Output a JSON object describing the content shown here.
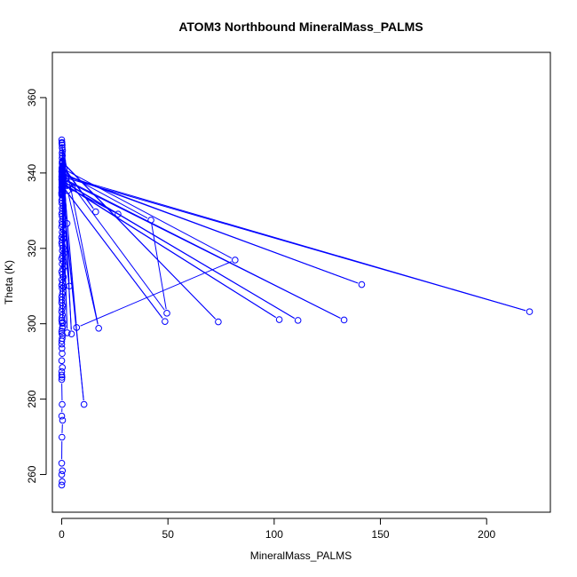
{
  "chart_data": {
    "type": "line",
    "title": "ATOM3 Northbound MineralMass_PALMS",
    "xlabel": "MineralMass_PALMS",
    "ylabel": "Theta (K)",
    "xlim": [
      -4.4,
      230
    ],
    "ylim": [
      250,
      372
    ],
    "xticks": [
      0,
      50,
      100,
      150,
      200
    ],
    "yticks": [
      260,
      280,
      300,
      320,
      340,
      360
    ],
    "grid": false,
    "legend": "none",
    "colors": {
      "series": "#0000ff",
      "axes": "#000000"
    },
    "series": [
      {
        "style": "points-and-lines",
        "x": [
          0,
          0.2,
          0,
          0.3,
          0,
          0.1,
          0.4,
          0,
          0.2,
          0,
          0.1,
          0,
          0,
          0.3,
          0,
          0.2,
          0.1,
          0,
          0,
          0.2,
          0.4,
          0.1,
          0,
          0.3,
          0.5,
          0.2,
          0,
          0.1,
          0.3,
          0,
          0.2,
          0.4,
          0,
          0.1,
          0,
          0.3,
          0.6,
          0.2,
          0,
          0.4,
          0.1,
          0.8,
          0.3,
          0,
          0.5,
          1.2,
          0.2,
          0.7,
          0,
          0.4,
          1.0,
          0.3,
          0.6,
          0.2,
          0,
          0.3,
          0,
          0.5,
          0.2,
          0.8,
          0,
          0.3,
          0.1,
          0.5,
          0.2,
          0,
          0.4,
          0.2,
          0.6,
          0.1,
          0,
          0.3,
          0.2,
          0.5,
          0.1,
          0,
          10.5,
          0.2,
          0.1,
          0,
          0,
          0.1,
          0,
          2.6,
          0.1,
          0.3,
          0.2,
          4.6,
          0.4,
          0.2,
          3.6,
          0.8,
          0.3,
          0.5,
          0.2,
          1.0,
          0.4,
          0.2,
          2.8,
          17.4,
          0.2,
          0.1,
          0,
          2.5,
          0.1,
          0.3,
          73.7,
          0.2,
          0.3,
          0.5,
          16.0,
          0.3,
          0.2,
          0.1,
          81.6,
          7.0,
          0.5,
          0.2,
          0.4,
          0.1,
          0.2,
          1.2,
          42.0,
          49.5,
          0.6,
          0.2,
          141.2,
          0.4,
          0.1,
          1.0,
          220.2,
          0.1,
          0.3,
          0.5,
          132.9,
          0.2,
          0.4,
          0.1,
          111.2,
          0.3,
          0.5,
          0.2,
          102.4,
          0.4,
          0.1,
          26.5,
          0.6,
          0.3,
          48.6,
          0.5,
          0.2,
          5.0,
          0.3,
          0.1,
          0.5,
          0.2,
          0.1,
          0,
          0,
          0.1,
          0
        ],
        "y": [
          257.2,
          258.1,
          260.0,
          261.0,
          263.0,
          269.9,
          274.4,
          275.5,
          278.6,
          285.2,
          285.8,
          286.4,
          287.3,
          288.4,
          290.2,
          292.1,
          293.5,
          294.6,
          295.4,
          296.1,
          296.9,
          297.4,
          298.0,
          298.8,
          299.3,
          300.1,
          300.9,
          301.6,
          302.3,
          303.2,
          304.0,
          304.8,
          305.6,
          306.3,
          307.1,
          307.9,
          308.6,
          309.4,
          310.2,
          310.9,
          311.7,
          312.4,
          313.1,
          313.8,
          314.5,
          315.2,
          315.9,
          316.6,
          317.3,
          318.0,
          318.7,
          319.4,
          320.1,
          320.8,
          321.5,
          322.2,
          322.9,
          323.6,
          324.3,
          325.0,
          325.7,
          326.4,
          327.1,
          327.8,
          328.5,
          329.2,
          329.9,
          330.6,
          331.3,
          332.0,
          332.7,
          333.4,
          334.1,
          334.8,
          335.5,
          336.2,
          278.6,
          336.9,
          337.6,
          338.3,
          339.0,
          339.7,
          340.4,
          297.6,
          341.1,
          341.8,
          342.5,
          297.3,
          343.2,
          343.9,
          310.0,
          322.6,
          344.6,
          300.4,
          345.3,
          309.8,
          346.0,
          346.7,
          335.3,
          298.8,
          347.4,
          348.1,
          348.8,
          326.6,
          347.9,
          342.8,
          300.5,
          343.0,
          342.6,
          342.0,
          329.7,
          341.8,
          341.5,
          341.3,
          316.9,
          299.0,
          341.0,
          340.8,
          340.6,
          340.4,
          340.2,
          340.0,
          327.5,
          302.8,
          340.0,
          339.8,
          310.4,
          339.6,
          339.4,
          339.2,
          303.2,
          339.0,
          338.8,
          338.6,
          301.0,
          338.4,
          338.2,
          338.0,
          300.9,
          337.8,
          337.6,
          337.4,
          301.1,
          337.2,
          337.0,
          329.1,
          336.8,
          336.6,
          300.6,
          336.4,
          336.2,
          336.0,
          335.8,
          335.6,
          335.4,
          335.2,
          335.0,
          334.8,
          334.6,
          334.4,
          334.2
        ]
      }
    ]
  }
}
